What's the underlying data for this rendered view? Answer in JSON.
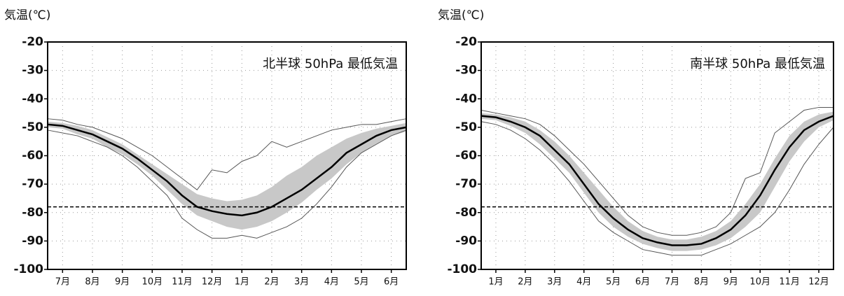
{
  "chart_data": [
    {
      "type": "line",
      "ylabel": "気温(℃)",
      "annotation": "北半球 50hPa 最低気温",
      "x": [
        0,
        0.5,
        1,
        1.5,
        2,
        2.5,
        3,
        3.5,
        4,
        4.5,
        5,
        5.5,
        6,
        6.5,
        7,
        7.5,
        8,
        8.5,
        9,
        9.5,
        10,
        10.5,
        11,
        11.5,
        12
      ],
      "xlim": [
        0,
        12
      ],
      "xticks": [
        {
          "value": 0.5,
          "label": "7月"
        },
        {
          "value": 1.5,
          "label": "8月"
        },
        {
          "value": 2.5,
          "label": "9月"
        },
        {
          "value": 3.5,
          "label": "10月"
        },
        {
          "value": 4.5,
          "label": "11月"
        },
        {
          "value": 5.5,
          "label": "12月"
        },
        {
          "value": 6.5,
          "label": "1月"
        },
        {
          "value": 7.5,
          "label": "2月"
        },
        {
          "value": 8.5,
          "label": "3月"
        },
        {
          "value": 9.5,
          "label": "4月"
        },
        {
          "value": 10.5,
          "label": "5月"
        },
        {
          "value": 11.5,
          "label": "6月"
        }
      ],
      "ylim": [
        -100,
        -20
      ],
      "yticks": [
        -100,
        -90,
        -80,
        -70,
        -60,
        -50,
        -40,
        -30,
        -20
      ],
      "grid": true,
      "hline": -78,
      "band": {
        "color": "#c8c8c8",
        "upper": [
          -48,
          -48.5,
          -49.5,
          -51,
          -53.5,
          -56,
          -59.5,
          -63,
          -66.5,
          -70,
          -73.5,
          -75,
          -76,
          -75.5,
          -74,
          -71,
          -67,
          -64,
          -60,
          -57,
          -54,
          -52,
          -50.5,
          -49.5,
          -48.5
        ],
        "lower": [
          -50,
          -50.5,
          -52.5,
          -54,
          -57,
          -59.5,
          -63,
          -67,
          -72,
          -77,
          -81,
          -83,
          -85,
          -86,
          -85,
          -83,
          -80,
          -76.5,
          -72,
          -68,
          -63,
          -59,
          -56,
          -53,
          -51.5
        ]
      },
      "series": [
        {
          "color": "#555555",
          "width": 1,
          "values": [
            -47,
            -47.5,
            -49,
            -50,
            -52,
            -54,
            -57,
            -60,
            -64,
            -68,
            -72,
            -65,
            -66,
            -62,
            -60,
            -55,
            -57,
            -55,
            -53,
            -51,
            -50,
            -49,
            -49,
            -48,
            -47
          ]
        },
        {
          "color": "#555555",
          "width": 1,
          "values": [
            -51,
            -52,
            -53,
            -55,
            -57,
            -60,
            -64,
            -69,
            -74,
            -82,
            -86,
            -89,
            -89,
            -88,
            -89,
            -87,
            -85,
            -82,
            -77,
            -71,
            -64,
            -59,
            -56,
            -53,
            -51
          ]
        },
        {
          "color": "#000000",
          "width": 2.5,
          "values": [
            -49,
            -49.5,
            -51,
            -52.5,
            -55,
            -57.5,
            -61,
            -65,
            -69,
            -74,
            -78,
            -79.5,
            -80.5,
            -81,
            -80,
            -78,
            -75,
            -72,
            -68,
            -64,
            -59,
            -56,
            -53,
            -51,
            -50
          ]
        }
      ]
    },
    {
      "type": "line",
      "ylabel": "気温(℃)",
      "annotation": "南半球 50hPa 最低気温",
      "x": [
        0,
        0.5,
        1,
        1.5,
        2,
        2.5,
        3,
        3.5,
        4,
        4.5,
        5,
        5.5,
        6,
        6.5,
        7,
        7.5,
        8,
        8.5,
        9,
        9.5,
        10,
        10.5,
        11,
        11.5,
        12
      ],
      "xlim": [
        0,
        12
      ],
      "xticks": [
        {
          "value": 0.5,
          "label": "1月"
        },
        {
          "value": 1.5,
          "label": "2月"
        },
        {
          "value": 2.5,
          "label": "3月"
        },
        {
          "value": 3.5,
          "label": "4月"
        },
        {
          "value": 4.5,
          "label": "5月"
        },
        {
          "value": 5.5,
          "label": "6月"
        },
        {
          "value": 6.5,
          "label": "7月"
        },
        {
          "value": 7.5,
          "label": "8月"
        },
        {
          "value": 8.5,
          "label": "9月"
        },
        {
          "value": 9.5,
          "label": "10月"
        },
        {
          "value": 10.5,
          "label": "11月"
        },
        {
          "value": 11.5,
          "label": "12月"
        }
      ],
      "ylim": [
        -100,
        -20
      ],
      "yticks": [
        -100,
        -90,
        -80,
        -70,
        -60,
        -50,
        -40,
        -30,
        -20
      ],
      "grid": true,
      "hline": -78,
      "band": {
        "color": "#c8c8c8",
        "upper": [
          -45,
          -45.5,
          -46.5,
          -48,
          -51,
          -55,
          -60,
          -66,
          -72,
          -78,
          -83,
          -86.5,
          -88.5,
          -89.5,
          -89.5,
          -88.5,
          -86.5,
          -83,
          -77,
          -70,
          -61,
          -53,
          -48,
          -45.5,
          -44.5
        ],
        "lower": [
          -47,
          -47.5,
          -49.5,
          -52,
          -56,
          -61,
          -66,
          -73,
          -80,
          -85,
          -88.5,
          -91,
          -92.5,
          -93.5,
          -93.5,
          -93,
          -91.5,
          -89,
          -85,
          -80,
          -71,
          -62,
          -55,
          -50,
          -47.5
        ]
      },
      "series": [
        {
          "color": "#555555",
          "width": 1,
          "values": [
            -44,
            -45,
            -46,
            -47,
            -49,
            -53,
            -58,
            -63,
            -69,
            -75,
            -81,
            -85,
            -87,
            -88,
            -88,
            -87,
            -85,
            -80,
            -68,
            -66,
            -52,
            -48,
            -44,
            -43,
            -43
          ]
        },
        {
          "color": "#555555",
          "width": 1,
          "values": [
            -48,
            -49,
            -51,
            -54,
            -58,
            -63,
            -69,
            -76,
            -83,
            -87,
            -90,
            -93,
            -94,
            -95,
            -95,
            -95,
            -93,
            -91,
            -88,
            -85,
            -80,
            -72,
            -63,
            -56,
            -50
          ]
        },
        {
          "color": "#000000",
          "width": 2.5,
          "values": [
            -46,
            -46.5,
            -48,
            -50,
            -53,
            -58,
            -63,
            -70,
            -77,
            -82,
            -86,
            -89,
            -90.5,
            -91.5,
            -91.5,
            -91,
            -89,
            -86,
            -81,
            -74,
            -65,
            -57,
            -51,
            -48,
            -46
          ]
        }
      ]
    }
  ]
}
